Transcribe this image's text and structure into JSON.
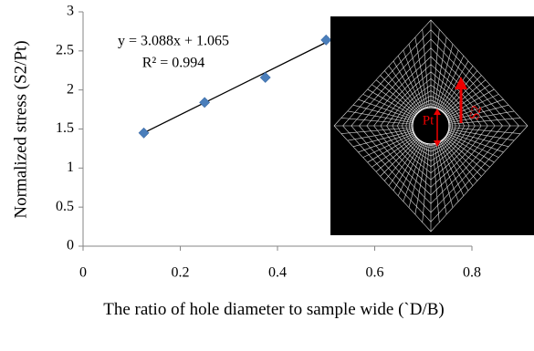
{
  "chart_data": {
    "type": "scatter",
    "y_label": "Normalized stress (S2/Pt)",
    "x_label": "The ratio of  hole diameter to sample wide (`D/B)",
    "annotations": [
      "y = 3.088x + 1.065",
      "R² = 0.994"
    ],
    "inset_labels": [
      "Pt",
      "S2"
    ],
    "series": [
      {
        "color": "#4a7ebb",
        "x": [
          0.125,
          0.25,
          0.375,
          0.5
        ],
        "values": [
          1.45,
          1.84,
          2.16,
          2.64
        ]
      }
    ],
    "trendline": {
      "slope": 3.088,
      "intercept": 1.065,
      "color": "#000000"
    },
    "xlim": [
      0,
      0.8
    ],
    "xticks": [
      0,
      0.2,
      0.4,
      0.6,
      0.8
    ],
    "ylim": [
      0,
      3
    ],
    "yticks": [
      0,
      0.5,
      1,
      1.5,
      2,
      2.5,
      3
    ],
    "grid": false
  }
}
